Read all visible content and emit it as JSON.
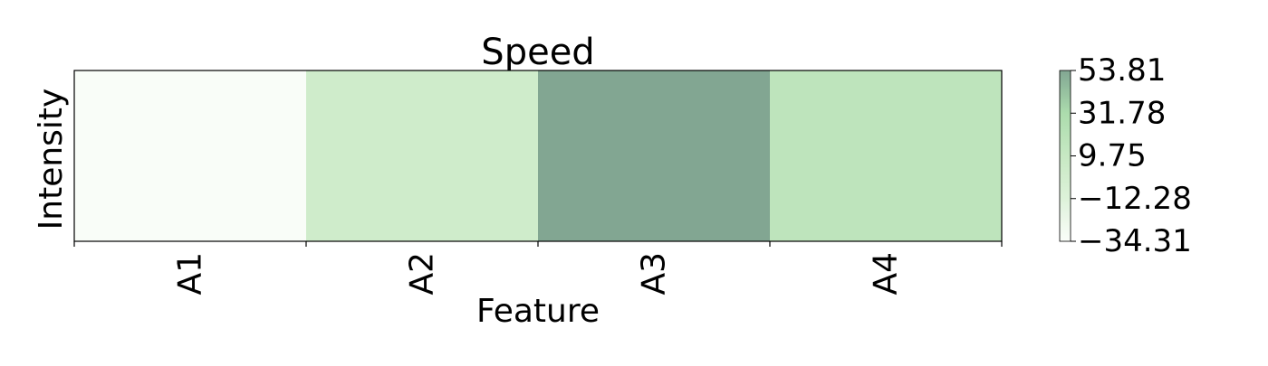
{
  "chart_data": {
    "type": "heatmap",
    "title": "Speed",
    "xlabel": "Feature",
    "ylabel": "Intensity",
    "x_categories": [
      "A1",
      "A2",
      "A3",
      "A4"
    ],
    "y_categories": [
      ""
    ],
    "values": [
      [
        -33.5,
        2.0,
        53.81,
        16.5
      ]
    ],
    "colorbar": {
      "min": -34.31,
      "max": 53.81,
      "ticks": [
        53.81,
        31.78,
        9.75,
        -12.28,
        -34.31
      ],
      "tick_labels": [
        "53.81",
        "31.78",
        "9.75",
        "−12.28",
        "−34.31"
      ],
      "colors": [
        "#f7fcf5",
        "#c7e9c0",
        "#a1d99b",
        "#74c476",
        "#2e6b4a"
      ],
      "alpha": 0.6
    },
    "grid": false
  }
}
